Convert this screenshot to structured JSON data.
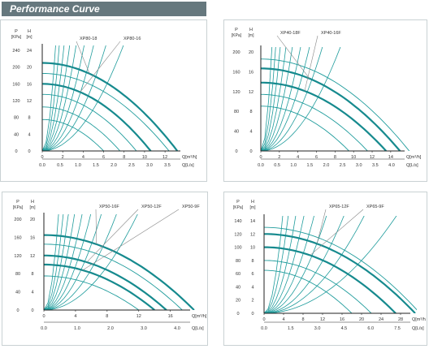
{
  "header": {
    "title": "Performance Curve"
  },
  "colors": {
    "header_bg": "#66787e",
    "curve": "#1f9c9c",
    "curve_bold": "#168a8e",
    "axis": "#222222",
    "frame": "#c9d1d3"
  },
  "chart_data": [
    {
      "type": "line",
      "labels": {
        "left_unit_top": "P",
        "left_unit": "[KPa]",
        "head_unit_top": "H",
        "head_unit": "[m]",
        "x1": "Q[m³/h]",
        "x2": "Q[L/s]"
      },
      "p_ticks": [
        "240",
        "200",
        "160",
        "120",
        "80",
        "40",
        "0"
      ],
      "h_ticks": [
        "24",
        "20",
        "16",
        "12",
        "8",
        "4",
        "0"
      ],
      "x1_ticks": [
        "0",
        "2",
        "4",
        "6",
        "8",
        "10",
        "12"
      ],
      "x2_ticks": [
        "0.0",
        "0.5",
        "1.0",
        "1.5",
        "2.0",
        "2.5",
        "3.0",
        "3.5"
      ],
      "xlim": [
        0,
        13.5
      ],
      "ylim": [
        0,
        24
      ],
      "series": [
        {
          "name": "XP80-18",
          "h0": 21,
          "qmax": 13.2
        },
        {
          "name": "XP80-16",
          "h0": 16,
          "qmax": 10.6
        }
      ],
      "minor_curves": [
        {
          "h0": 18.5,
          "qmax": 12.4
        },
        {
          "h0": 13.5,
          "qmax": 9.2
        },
        {
          "h0": 10.5,
          "qmax": 7.6
        },
        {
          "h0": 7.5,
          "qmax": 6
        }
      ],
      "system_curves": [
        0.4,
        0.65,
        1,
        1.5,
        2.3,
        3.5,
        5.5,
        9,
        15
      ]
    },
    {
      "type": "line",
      "labels": {
        "left_unit_top": "P",
        "left_unit": "[KPa]",
        "head_unit_top": "H",
        "head_unit": "[m]",
        "x1": "Q[m³/h]",
        "x2": "Q[L/s]"
      },
      "p_ticks": [
        "200",
        "160",
        "120",
        "80",
        "40",
        "0"
      ],
      "h_ticks": [
        "20",
        "16",
        "12",
        "8",
        "4",
        "0"
      ],
      "x1_ticks": [
        "0",
        "2",
        "4",
        "6",
        "8",
        "10",
        "12",
        "14"
      ],
      "x2_ticks": [
        "0.0",
        "0.5",
        "1.0",
        "1.5",
        "2.0",
        "2.5",
        "3.0",
        "3.5",
        "4.0"
      ],
      "xlim": [
        0,
        15.5
      ],
      "ylim": [
        0,
        21
      ],
      "series": [
        {
          "name": "XP40-18F",
          "h0": 17.5,
          "qmax": 15
        },
        {
          "name": "XP40-16F",
          "h0": 14.5,
          "qmax": 13.5
        }
      ],
      "minor_curves": [
        {
          "h0": 19.5,
          "qmax": 16
        },
        {
          "h0": 12,
          "qmax": 11.5
        },
        {
          "h0": 9.5,
          "qmax": 9.5
        }
      ],
      "system_curves": [
        0.3,
        0.5,
        0.8,
        1.2,
        1.9,
        3,
        5,
        8.5,
        15
      ]
    },
    {
      "type": "line",
      "labels": {
        "left_unit_top": "P",
        "left_unit": "[KPa]",
        "head_unit_top": "H",
        "head_unit": "[m]",
        "x1": "Q[m³/h]",
        "x2": "Q[L/s]"
      },
      "p_ticks": [
        "200",
        "160",
        "120",
        "80",
        "40",
        "0"
      ],
      "h_ticks": [
        "20",
        "16",
        "12",
        "8",
        "4",
        "0"
      ],
      "x1_ticks": [
        "0",
        "4",
        "8",
        "12",
        "16"
      ],
      "x2_ticks": [
        "0.0",
        "1.0",
        "2.0",
        "3.0",
        "4.0"
      ],
      "xlim": [
        0,
        18.5
      ],
      "ylim": [
        0,
        20
      ],
      "series": [
        {
          "name": "XP50-16F",
          "h0": 16.5,
          "qmax": 19
        },
        {
          "name": "XP50-12F",
          "h0": 12,
          "qmax": 15.5
        },
        {
          "name": "XP50-9F",
          "h0": 10,
          "qmax": 14
        }
      ],
      "minor_curves": [
        {
          "h0": 14.5,
          "qmax": 17.5
        },
        {
          "h0": 7.5,
          "qmax": 12
        }
      ],
      "system_curves": [
        0.15,
        0.25,
        0.4,
        0.6,
        0.9,
        1.4,
        2.2,
        3.5,
        6
      ]
    },
    {
      "type": "line",
      "labels": {
        "left_unit_top": "P",
        "left_unit": "[KPa]",
        "head_unit_top": "H",
        "head_unit": "[m]",
        "x1": "Q[m³/h]",
        "x2": "Q[L/s]"
      },
      "p_ticks": [
        "140",
        "120",
        "100",
        "80",
        "60",
        "40",
        "20",
        "0"
      ],
      "h_ticks": [
        "14",
        "12",
        "10",
        "8",
        "6",
        "4",
        "2",
        "0"
      ],
      "x1_ticks": [
        "0",
        "4",
        "8",
        "12",
        "16",
        "20",
        "24",
        "28"
      ],
      "x2_ticks": [
        "0.0",
        "1.5",
        "3.0",
        "4.5",
        "6.0",
        "7.5"
      ],
      "xlim": [
        0,
        30
      ],
      "ylim": [
        0,
        14
      ],
      "series": [
        {
          "name": "XP65-12F",
          "h0": 12,
          "qmax": 31
        },
        {
          "name": "XP65-9F",
          "h0": 10,
          "qmax": 27
        }
      ],
      "minor_curves": [
        {
          "h0": 13,
          "qmax": 32
        },
        {
          "h0": 8,
          "qmax": 22
        },
        {
          "h0": 6.5,
          "qmax": 18
        }
      ],
      "system_curves": [
        0.02,
        0.035,
        0.055,
        0.09,
        0.14,
        0.22,
        0.35,
        0.6,
        1
      ]
    }
  ]
}
